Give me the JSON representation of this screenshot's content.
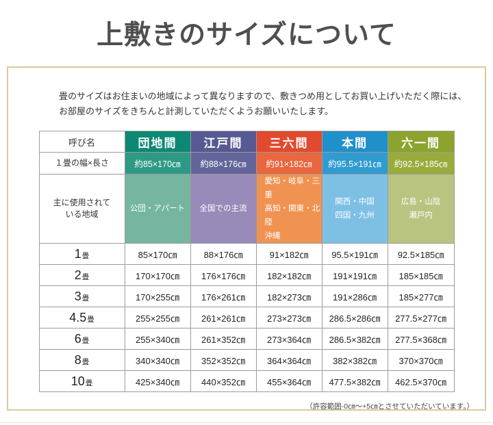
{
  "page": {
    "title": "上敷きのサイズについて",
    "intro_line1": "畳のサイズはお住まいの地域によって異なりますので、敷きつめ用としてお買い上げいただく際には、",
    "intro_line2": "お部屋のサイズをきちんと計測していただくようお願いいたします。",
    "footnote": "（許容範囲-0㎝～+5㎝とさせていただいています。）"
  },
  "colors": {
    "box_border": "#ddc79e",
    "grid_border": "#9b9b9b",
    "danchima_header": "#0d8874",
    "danchima_size": "#2e9a85",
    "danchima_region": "#76b6a1",
    "edoma_header": "#575992",
    "edoma_size": "#63649b",
    "edoma_region": "#988bb9",
    "sanrokuma_header": "#e24a2d",
    "sanrokuma_size": "#e9663e",
    "sanrokuma_region": "#f09352",
    "honma_header": "#1f90ca",
    "honma_size": "#2f9bd1",
    "honma_region": "#7ec0e4",
    "rokuichima_header": "#8ca42e",
    "rokuichima_size": "#99ac3b",
    "rokuichima_region": "#b8c480"
  },
  "table": {
    "name_header": "呼び名",
    "size_row_label": "１畳の幅×長さ",
    "region_row_label_lines": [
      "主に使用されて",
      "いる地域"
    ],
    "columns": [
      {
        "key": "danchima",
        "name": "団地間",
        "size": "約85×170㎝",
        "region_lines": [
          "公団・アパート"
        ],
        "region_centered": true,
        "color_header": "#0d8874",
        "color_size": "#2e9a85",
        "color_region": "#76b6a1"
      },
      {
        "key": "edoma",
        "name": "江戸間",
        "size": "約88×176㎝",
        "region_lines": [
          "全国での主流"
        ],
        "region_centered": true,
        "color_header": "#575992",
        "color_size": "#63649b",
        "color_region": "#988bb9"
      },
      {
        "key": "sanrokuma",
        "name": "三六間",
        "size": "約91×182㎝",
        "region_lines": [
          "愛知・岐阜・三重",
          "高知・関東・北陸",
          "沖縄"
        ],
        "region_centered": false,
        "color_header": "#e24a2d",
        "color_size": "#e9663e",
        "color_region": "#f09352"
      },
      {
        "key": "honma",
        "name": "本間",
        "size": "約95.5×191㎝",
        "region_lines": [
          "関西・中国",
          "四国・九州"
        ],
        "region_centered": true,
        "color_header": "#1f90ca",
        "color_size": "#2f9bd1",
        "color_region": "#7ec0e4"
      },
      {
        "key": "rokuichima",
        "name": "六一間",
        "size": "約92.5×185㎝",
        "region_lines": [
          "広島・山陰",
          "瀬戸内"
        ],
        "region_centered": true,
        "color_header": "#8ca42e",
        "color_size": "#99ac3b",
        "color_region": "#b8c480"
      }
    ],
    "rows": [
      {
        "label_num": "1",
        "label_unit": "畳",
        "cells": [
          "85×170㎝",
          "88×176㎝",
          "91×182㎝",
          "95.5×191㎝",
          "92.5×185㎝"
        ]
      },
      {
        "label_num": "2",
        "label_unit": "畳",
        "cells": [
          "170×170㎝",
          "176×176㎝",
          "182×182㎝",
          "191×191㎝",
          "185×185㎝"
        ]
      },
      {
        "label_num": "3",
        "label_unit": "畳",
        "cells": [
          "170×255㎝",
          "176×261㎝",
          "182×273㎝",
          "191×286㎝",
          "185×277㎝"
        ]
      },
      {
        "label_num": "4.5",
        "label_unit": "畳",
        "cells": [
          "255×255㎝",
          "261×261㎝",
          "273×273㎝",
          "286.5×286㎝",
          "277.5×277㎝"
        ]
      },
      {
        "label_num": "6",
        "label_unit": "畳",
        "cells": [
          "255×340㎝",
          "261×352㎝",
          "273×364㎝",
          "286.5×382㎝",
          "277.5×368㎝"
        ]
      },
      {
        "label_num": "8",
        "label_unit": "畳",
        "cells": [
          "340×340㎝",
          "352×352㎝",
          "364×364㎝",
          "382×382㎝",
          "370×370㎝"
        ]
      },
      {
        "label_num": "10",
        "label_unit": "畳",
        "cells": [
          "425×340㎝",
          "440×352㎝",
          "455×364㎝",
          "477.5×382㎝",
          "462.5×370㎝"
        ]
      }
    ]
  }
}
